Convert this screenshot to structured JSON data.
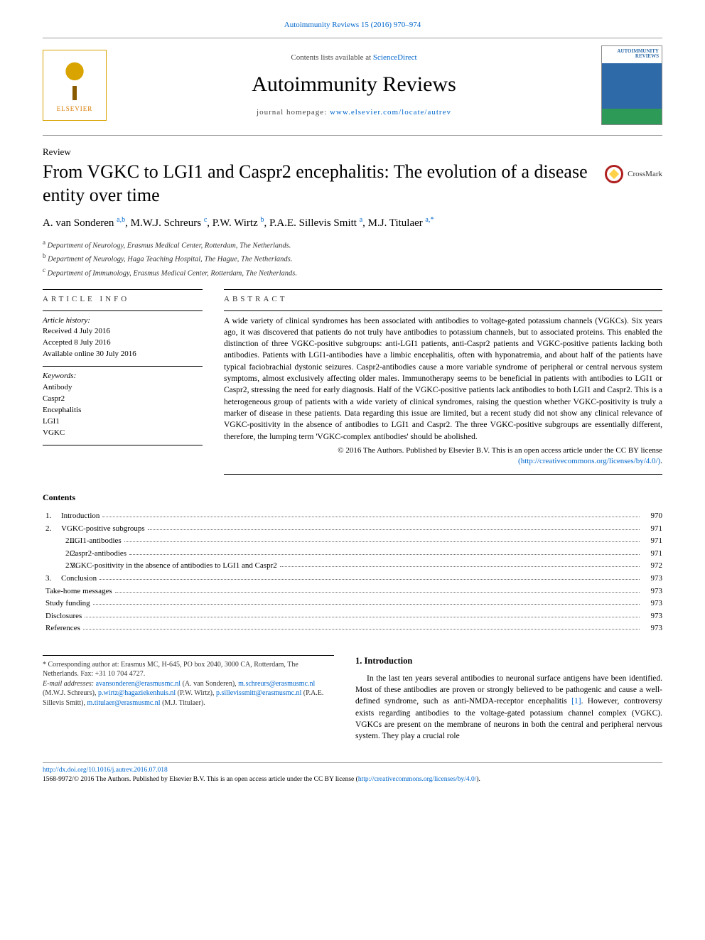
{
  "colors": {
    "link": "#0066cc",
    "text": "#000000",
    "muted": "#444444",
    "rule": "#000000",
    "elsevier_orange": "#d9a300"
  },
  "top_reference": "Autoimmunity Reviews 15 (2016) 970–974",
  "header": {
    "contents_prefix": "Contents lists available at ",
    "sciencedirect": "ScienceDirect",
    "journal_name": "Autoimmunity Reviews",
    "homepage_prefix": "journal homepage: ",
    "homepage_url": "www.elsevier.com/locate/autrev",
    "publisher_logo_label": "ELSEVIER",
    "cover_title": "AUTOIMMUNITY REVIEWS"
  },
  "article_type": "Review",
  "title": "From VGKC to LGI1 and Caspr2 encephalitis: The evolution of a disease entity over time",
  "crossmark_label": "CrossMark",
  "authors_html": "A. van Sonderen <sup>a,b</sup>, M.W.J. Schreurs <sup>c</sup>, P.W. Wirtz <sup>b</sup>, P.A.E. Sillevis Smitt <sup>a</sup>, M.J. Titulaer <sup>a,*</sup>",
  "affiliations": [
    {
      "mark": "a",
      "text": "Department of Neurology, Erasmus Medical Center, Rotterdam, The Netherlands."
    },
    {
      "mark": "b",
      "text": "Department of Neurology, Haga Teaching Hospital, The Hague, The Netherlands."
    },
    {
      "mark": "c",
      "text": "Department of Immunology, Erasmus Medical Center, Rotterdam, The Netherlands."
    }
  ],
  "article_info_heading": "ARTICLE INFO",
  "abstract_heading": "ABSTRACT",
  "history": {
    "label": "Article history:",
    "received": "Received 4 July 2016",
    "accepted": "Accepted 8 July 2016",
    "online": "Available online 30 July 2016"
  },
  "keywords_label": "Keywords:",
  "keywords": [
    "Antibody",
    "Caspr2",
    "Encephalitis",
    "LGI1",
    "VGKC"
  ],
  "abstract": "A wide variety of clinical syndromes has been associated with antibodies to voltage-gated potassium channels (VGKCs). Six years ago, it was discovered that patients do not truly have antibodies to potassium channels, but to associated proteins. This enabled the distinction of three VGKC-positive subgroups: anti-LGI1 patients, anti-Caspr2 patients and VGKC-positive patients lacking both antibodies. Patients with LGI1-antibodies have a limbic encephalitis, often with hyponatremia, and about half of the patients have typical faciobrachial dystonic seizures. Caspr2-antibodies cause a more variable syndrome of peripheral or central nervous system symptoms, almost exclusively affecting older males. Immunotherapy seems to be beneficial in patients with antibodies to LGI1 or Caspr2, stressing the need for early diagnosis. Half of the VGKC-positive patients lack antibodies to both LGI1 and Caspr2. This is a heterogeneous group of patients with a wide variety of clinical syndromes, raising the question whether VGKC-positivity is truly a marker of disease in these patients. Data regarding this issue are limited, but a recent study did not show any clinical relevance of VGKC-positivity in the absence of antibodies to LGI1 and Caspr2. The three VGKC-positive subgroups are essentially different, therefore, the lumping term 'VGKC-complex antibodies' should be abolished.",
  "copyright": "© 2016 The Authors. Published by Elsevier B.V. This is an open access article under the CC BY license",
  "cc_url_display": "(http://creativecommons.org/licenses/by/4.0/)",
  "contents_heading": "Contents",
  "toc": [
    {
      "level": 1,
      "num": "1.",
      "label": "Introduction",
      "page": "970"
    },
    {
      "level": 1,
      "num": "2.",
      "label": "VGKC-positive subgroups",
      "page": "971"
    },
    {
      "level": 2,
      "num": "2.1.",
      "label": "LGI1-antibodies",
      "page": "971"
    },
    {
      "level": 2,
      "num": "2.2.",
      "label": "Caspr2-antibodies",
      "page": "971"
    },
    {
      "level": 2,
      "num": "2.3.",
      "label": "VGKC-positivity in the absence of antibodies to LGI1 and Caspr2",
      "page": "972"
    },
    {
      "level": 1,
      "num": "3.",
      "label": "Conclusion",
      "page": "973"
    },
    {
      "level": 0,
      "num": "",
      "label": "Take-home messages",
      "page": "973"
    },
    {
      "level": 0,
      "num": "",
      "label": "Study funding",
      "page": "973"
    },
    {
      "level": 0,
      "num": "",
      "label": "Disclosures",
      "page": "973"
    },
    {
      "level": 0,
      "num": "",
      "label": "References",
      "page": "973"
    }
  ],
  "corresponding": {
    "star": "*",
    "text": "Corresponding author at: Erasmus MC, H-645, PO box 2040, 3000 CA, Rotterdam, The Netherlands. Fax: +31 10 704 4727.",
    "emails_label": "E-mail addresses:",
    "emails": [
      {
        "addr": "avansonderen@erasmusmc.nl",
        "who": "(A. van Sonderen),"
      },
      {
        "addr": "m.schreurs@erasmusmc.nl",
        "who": "(M.W.J. Schreurs),"
      },
      {
        "addr": "p.wirtz@hagaziekenhuis.nl",
        "who": "(P.W. Wirtz),"
      },
      {
        "addr": "p.sillevissmitt@erasmusmc.nl",
        "who": "(P.A.E. Sillevis Smitt),"
      },
      {
        "addr": "m.titulaer@erasmusmc.nl",
        "who": "(M.J. Titulaer)."
      }
    ]
  },
  "section1": {
    "heading": "1. Introduction",
    "para": "In the last ten years several antibodies to neuronal surface antigens have been identified. Most of these antibodies are proven or strongly believed to be pathogenic and cause a well-defined syndrome, such as anti-NMDA-receptor encephalitis [1]. However, controversy exists regarding antibodies to the voltage-gated potassium channel complex (VGKC). VGKCs are present on the membrane of neurons in both the central and peripheral nervous system. They play a crucial role"
  },
  "footer": {
    "doi": "http://dx.doi.org/10.1016/j.autrev.2016.07.018",
    "issn_line": "1568-9972/© 2016 The Authors. Published by Elsevier B.V. This is an open access article under the CC BY license (",
    "cc_url": "http://creativecommons.org/licenses/by/4.0/",
    "close_paren": ")."
  }
}
